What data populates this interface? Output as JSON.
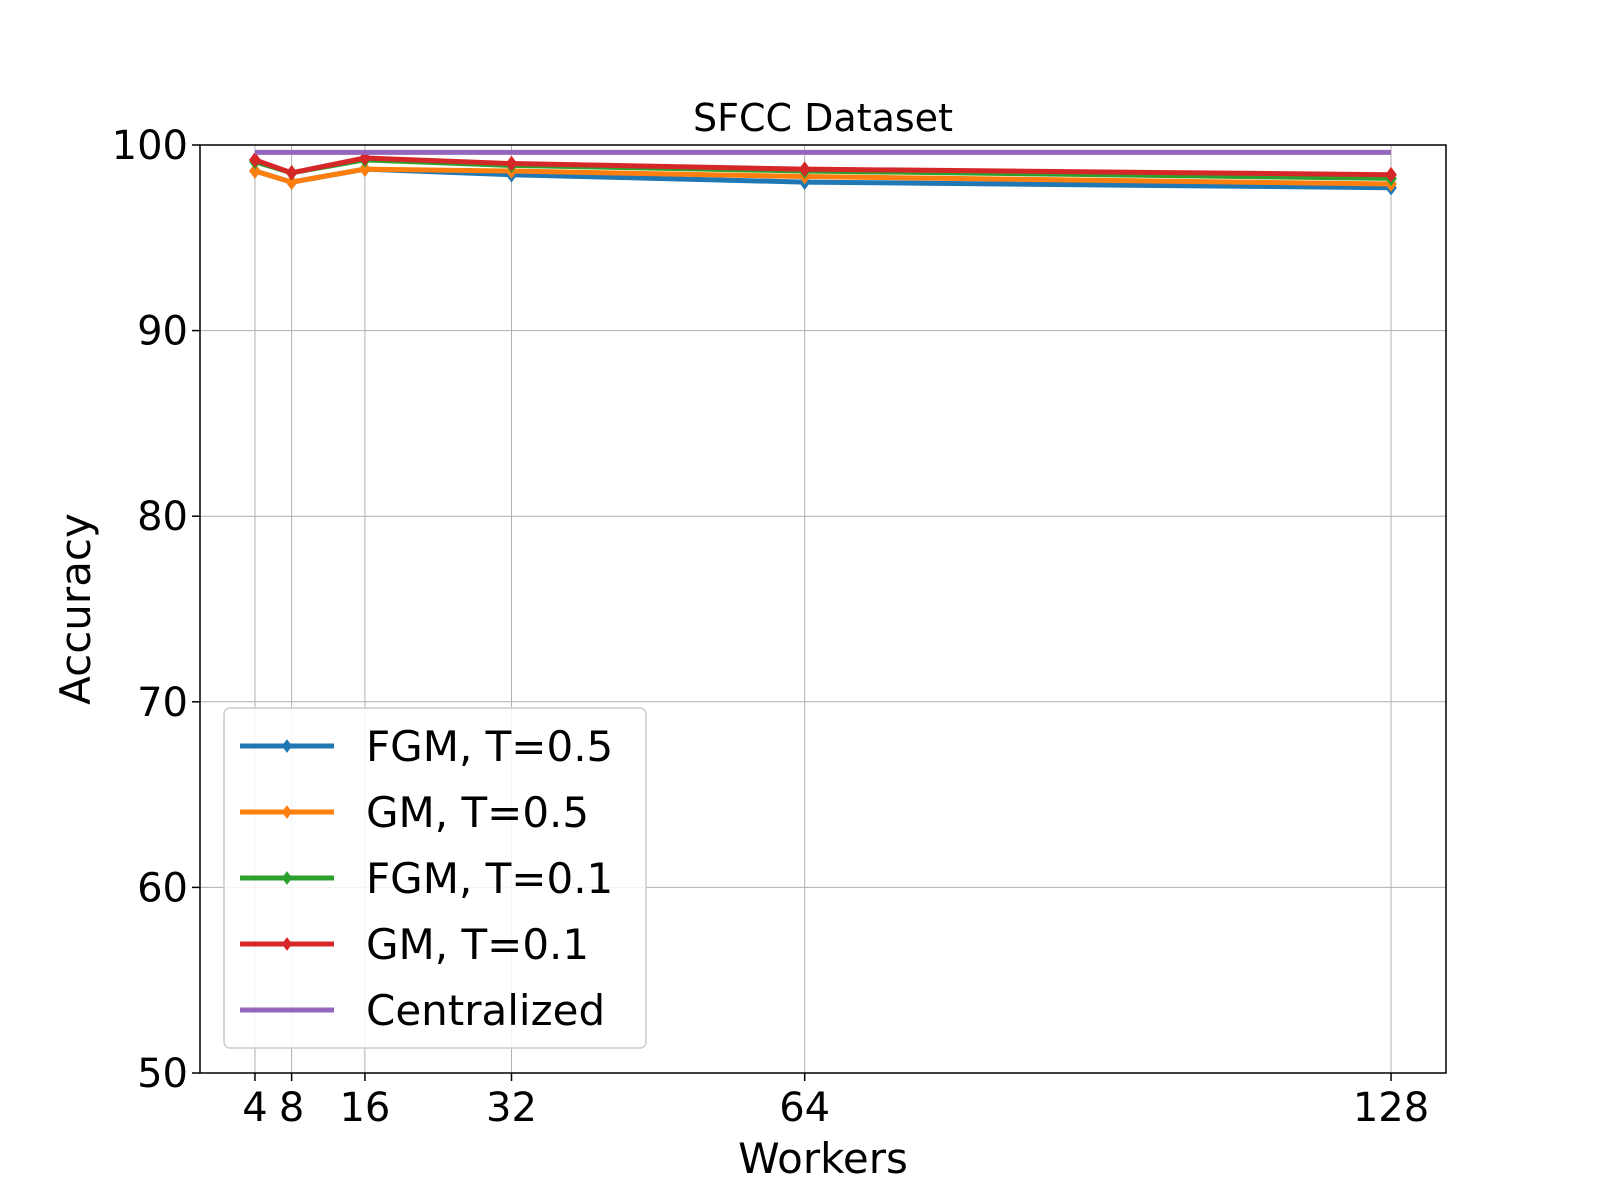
{
  "chart_data": {
    "type": "line",
    "title": "SFCC Dataset",
    "xlabel": "Workers",
    "ylabel": "Accuracy",
    "x": [
      4,
      8,
      16,
      32,
      64,
      128
    ],
    "x_tick_labels": [
      "4",
      "8",
      "16",
      "32",
      "64",
      "128"
    ],
    "xlim": [
      -2,
      134
    ],
    "ylim": [
      50,
      100
    ],
    "y_ticks": [
      50,
      60,
      70,
      80,
      90,
      100
    ],
    "y_tick_labels": [
      "50",
      "60",
      "70",
      "80",
      "90",
      "100"
    ],
    "grid": true,
    "legend_position": "lower-left",
    "series": [
      {
        "name": "FGM, T=0.5",
        "color": "#1f77b4",
        "marker": "diamond",
        "values": [
          98.6,
          98.0,
          98.7,
          98.4,
          98.0,
          97.7
        ]
      },
      {
        "name": "GM, T=0.5",
        "color": "#ff7f0e",
        "marker": "diamond",
        "values": [
          98.6,
          98.0,
          98.7,
          98.6,
          98.3,
          97.9
        ]
      },
      {
        "name": "FGM, T=0.1",
        "color": "#2ca02c",
        "marker": "diamond",
        "values": [
          99.1,
          98.5,
          99.2,
          98.9,
          98.6,
          98.2
        ]
      },
      {
        "name": "GM, T=0.1",
        "color": "#d62728",
        "marker": "diamond",
        "values": [
          99.2,
          98.5,
          99.3,
          99.0,
          98.7,
          98.4
        ]
      },
      {
        "name": "Centralized",
        "color": "#9467bd",
        "marker": "none",
        "values": [
          99.6,
          99.6,
          99.6,
          99.6,
          99.6,
          99.6
        ]
      }
    ]
  }
}
